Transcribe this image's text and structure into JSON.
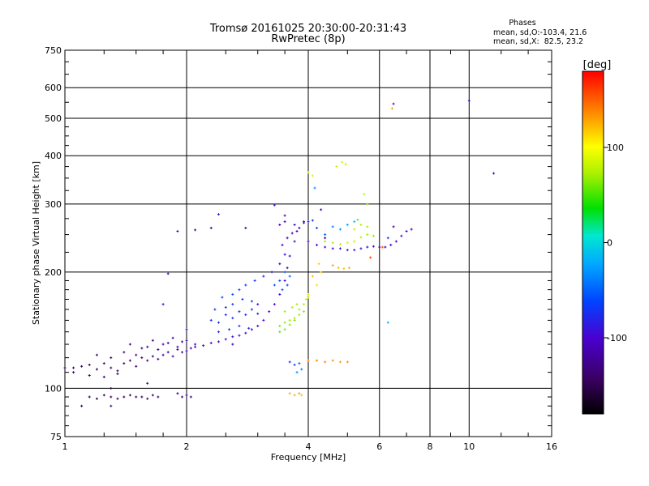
{
  "chart_data": {
    "type": "scatter",
    "title": "Tromsø 20161025 20:30:00-20:31:43",
    "subtitle": "RwPretec (8p)",
    "stats": {
      "heading": "Phases",
      "o_line": "mean, sd,O:-103.4, 21.6",
      "x_line": "mean, sd,X:  82.5, 23.2"
    },
    "xlabel": "Frequency [MHz]",
    "ylabel": "Stationary phase Virtual Height [km]",
    "x_scale": "log",
    "y_scale": "log",
    "xlim": [
      1,
      16
    ],
    "ylim": [
      75,
      750
    ],
    "x_ticks": [
      "1",
      "2",
      "4",
      "6",
      "8",
      "10",
      "16"
    ],
    "y_ticks": [
      "75",
      "100",
      "200",
      "300",
      "400",
      "500",
      "600",
      "750"
    ],
    "grid": true,
    "colorbar": {
      "label": "[deg]",
      "ticks": [
        "100",
        "0",
        "-100"
      ],
      "range": [
        -180,
        180
      ]
    },
    "series": [
      {
        "points": [
          [
            1.0,
            113,
            -150
          ],
          [
            1.05,
            113,
            -150
          ],
          [
            1.1,
            114,
            -150
          ],
          [
            1.15,
            115,
            -150
          ],
          [
            1.2,
            112,
            -150
          ],
          [
            1.25,
            116,
            -145
          ],
          [
            1.3,
            113,
            -145
          ],
          [
            1.35,
            111,
            -145
          ],
          [
            1.4,
            116,
            -140
          ],
          [
            1.45,
            118,
            -140
          ],
          [
            1.5,
            114,
            -140
          ],
          [
            1.55,
            120,
            -135
          ],
          [
            1.6,
            118,
            -130
          ],
          [
            1.65,
            121,
            -130
          ],
          [
            1.7,
            119,
            -125
          ],
          [
            1.75,
            122,
            -120
          ],
          [
            1.8,
            124,
            -120
          ],
          [
            1.85,
            121,
            -115
          ],
          [
            1.9,
            126,
            -115
          ],
          [
            1.95,
            124,
            -110
          ],
          [
            2.0,
            125,
            -110
          ],
          [
            2.05,
            127,
            -110
          ],
          [
            2.1,
            128,
            -105
          ],
          [
            2.2,
            129,
            -105
          ],
          [
            2.3,
            131,
            -100
          ],
          [
            2.4,
            132,
            -100
          ],
          [
            2.5,
            134,
            -95
          ],
          [
            2.6,
            136,
            -95
          ],
          [
            2.7,
            137,
            -95
          ],
          [
            2.8,
            139,
            -95
          ],
          [
            2.9,
            142,
            -95
          ],
          [
            3.0,
            145,
            -100
          ],
          [
            3.1,
            150,
            -100
          ],
          [
            3.2,
            158,
            -100
          ],
          [
            3.3,
            165,
            -100
          ],
          [
            3.4,
            175,
            -100
          ],
          [
            3.5,
            190,
            -100
          ],
          [
            3.55,
            205,
            -105
          ],
          [
            3.6,
            220,
            -105
          ],
          [
            3.7,
            240,
            -110
          ],
          [
            3.8,
            260,
            -110
          ],
          [
            3.9,
            270,
            -110
          ],
          [
            1.2,
            122,
            -140
          ],
          [
            1.3,
            120,
            -140
          ],
          [
            1.4,
            124,
            -135
          ],
          [
            1.5,
            122,
            -135
          ],
          [
            1.6,
            128,
            -130
          ],
          [
            1.7,
            126,
            -125
          ],
          [
            1.8,
            131,
            -120
          ],
          [
            1.9,
            128,
            -115
          ],
          [
            2.0,
            133,
            -110
          ],
          [
            2.1,
            130,
            -105
          ],
          [
            1.45,
            130,
            -135
          ],
          [
            1.55,
            127,
            -130
          ],
          [
            1.65,
            133,
            -125
          ],
          [
            1.75,
            130,
            -120
          ],
          [
            1.85,
            135,
            -115
          ],
          [
            1.95,
            132,
            -110
          ],
          [
            1.05,
            110,
            -155
          ],
          [
            1.15,
            108,
            -150
          ],
          [
            1.25,
            107,
            -150
          ],
          [
            1.35,
            109,
            -145
          ],
          [
            1.15,
            95,
            -150
          ],
          [
            1.2,
            94,
            -150
          ],
          [
            1.25,
            96,
            -150
          ],
          [
            1.3,
            95,
            -150
          ],
          [
            1.35,
            94,
            -145
          ],
          [
            1.4,
            95,
            -145
          ],
          [
            1.45,
            96,
            -145
          ],
          [
            1.5,
            95,
            -140
          ],
          [
            1.55,
            95,
            -140
          ],
          [
            1.6,
            94,
            -140
          ],
          [
            1.65,
            96,
            -140
          ],
          [
            1.7,
            95,
            -140
          ],
          [
            1.9,
            97,
            -130
          ],
          [
            1.95,
            95,
            -130
          ],
          [
            2.0,
            96,
            -130
          ],
          [
            2.05,
            95,
            -125
          ],
          [
            2.3,
            150,
            -80
          ],
          [
            2.4,
            148,
            -75
          ],
          [
            2.5,
            155,
            -75
          ],
          [
            2.6,
            152,
            -70
          ],
          [
            2.7,
            158,
            -70
          ],
          [
            2.8,
            155,
            -75
          ],
          [
            2.9,
            160,
            -75
          ],
          [
            3.0,
            156,
            -80
          ],
          [
            2.4,
            140,
            -80
          ],
          [
            2.55,
            142,
            -75
          ],
          [
            2.7,
            145,
            -70
          ],
          [
            2.85,
            143,
            -75
          ],
          [
            2.6,
            165,
            -70
          ],
          [
            2.75,
            170,
            -65
          ],
          [
            2.9,
            168,
            -70
          ],
          [
            2.5,
            162,
            -65
          ],
          [
            2.35,
            160,
            -70
          ],
          [
            2.45,
            172,
            -60
          ],
          [
            2.6,
            175,
            -55
          ],
          [
            2.7,
            180,
            -60
          ],
          [
            2.8,
            185,
            -65
          ],
          [
            2.95,
            190,
            -70
          ],
          [
            3.1,
            195,
            -80
          ],
          [
            3.25,
            200,
            -90
          ],
          [
            3.4,
            210,
            -100
          ],
          [
            3.5,
            222,
            -100
          ],
          [
            3.45,
            235,
            -105
          ],
          [
            3.55,
            245,
            -110
          ],
          [
            3.65,
            252,
            -110
          ],
          [
            3.75,
            255,
            -110
          ],
          [
            3.3,
            185,
            -55
          ],
          [
            3.4,
            190,
            -60
          ],
          [
            3.5,
            200,
            -55
          ],
          [
            3.6,
            195,
            -50
          ],
          [
            3.45,
            180,
            -55
          ],
          [
            3.55,
            185,
            -60
          ],
          [
            4.0,
            240,
            -100
          ],
          [
            4.2,
            235,
            -100
          ],
          [
            4.4,
            232,
            -95
          ],
          [
            4.6,
            230,
            -95
          ],
          [
            4.8,
            230,
            -90
          ],
          [
            5.0,
            228,
            -90
          ],
          [
            5.2,
            228,
            -90
          ],
          [
            5.4,
            230,
            -95
          ],
          [
            5.6,
            232,
            -100
          ],
          [
            5.8,
            233,
            -100
          ],
          [
            6.0,
            232,
            -105
          ],
          [
            6.2,
            232,
            -105
          ],
          [
            6.4,
            235,
            -105
          ],
          [
            6.6,
            240,
            -100
          ],
          [
            6.8,
            248,
            -100
          ],
          [
            7.0,
            255,
            -100
          ],
          [
            7.2,
            258,
            -100
          ],
          [
            3.5,
            270,
            -100
          ],
          [
            3.7,
            265,
            -95
          ],
          [
            3.9,
            268,
            -90
          ],
          [
            4.0,
            270,
            -80
          ],
          [
            4.1,
            272,
            -70
          ],
          [
            4.2,
            260,
            -60
          ],
          [
            4.4,
            250,
            -50
          ],
          [
            4.6,
            262,
            -40
          ],
          [
            4.8,
            258,
            -30
          ],
          [
            5.0,
            265,
            -20
          ],
          [
            5.2,
            270,
            -10
          ],
          [
            4.4,
            240,
            70
          ],
          [
            4.6,
            238,
            75
          ],
          [
            4.8,
            236,
            80
          ],
          [
            5.0,
            238,
            85
          ],
          [
            5.2,
            240,
            80
          ],
          [
            5.4,
            246,
            75
          ],
          [
            5.6,
            250,
            70
          ],
          [
            5.8,
            248,
            65
          ],
          [
            5.6,
            262,
            70
          ],
          [
            5.4,
            265,
            75
          ],
          [
            5.2,
            258,
            80
          ],
          [
            5.3,
            273,
            60
          ],
          [
            3.4,
            145,
            60
          ],
          [
            3.5,
            148,
            65
          ],
          [
            3.6,
            150,
            70
          ],
          [
            3.7,
            152,
            75
          ],
          [
            3.8,
            155,
            70
          ],
          [
            3.9,
            158,
            65
          ],
          [
            3.4,
            140,
            55
          ],
          [
            3.5,
            142,
            60
          ],
          [
            3.6,
            146,
            65
          ],
          [
            3.7,
            150,
            60
          ],
          [
            3.8,
            160,
            70
          ],
          [
            3.9,
            165,
            75
          ],
          [
            3.95,
            170,
            80
          ],
          [
            4.0,
            175,
            85
          ],
          [
            3.5,
            158,
            70
          ],
          [
            3.65,
            162,
            75
          ],
          [
            3.75,
            165,
            70
          ],
          [
            4.2,
            185,
            110
          ],
          [
            4.3,
            200,
            115
          ],
          [
            4.25,
            210,
            115
          ],
          [
            4.1,
            195,
            120
          ],
          [
            4.0,
            172,
            115
          ],
          [
            4.6,
            208,
            130
          ],
          [
            4.75,
            205,
            125
          ],
          [
            4.9,
            204,
            120
          ],
          [
            5.05,
            205,
            125
          ],
          [
            3.6,
            117,
            -70
          ],
          [
            3.7,
            115,
            -60
          ],
          [
            3.8,
            116,
            -50
          ],
          [
            3.85,
            112,
            -40
          ],
          [
            3.75,
            110,
            -30
          ],
          [
            4.0,
            118,
            140
          ],
          [
            4.2,
            118,
            140
          ],
          [
            4.4,
            117,
            140
          ],
          [
            4.6,
            118,
            135
          ],
          [
            4.8,
            117,
            130
          ],
          [
            5.0,
            117,
            135
          ],
          [
            3.6,
            97,
            125
          ],
          [
            3.7,
            96,
            125
          ],
          [
            3.8,
            97,
            130
          ],
          [
            3.85,
            96,
            120
          ],
          [
            4.0,
            362,
            75
          ],
          [
            4.1,
            355,
            85
          ],
          [
            4.15,
            330,
            -30
          ],
          [
            4.7,
            375,
            80
          ],
          [
            4.85,
            385,
            85
          ],
          [
            4.95,
            380,
            80
          ],
          [
            5.5,
            318,
            80
          ],
          [
            5.6,
            300,
            60
          ],
          [
            6.5,
            545,
            -100
          ],
          [
            6.45,
            530,
            130
          ],
          [
            10.0,
            555,
            -100
          ],
          [
            11.5,
            360,
            -100
          ],
          [
            3.4,
            265,
            -110
          ],
          [
            3.5,
            280,
            -100
          ],
          [
            3.3,
            298,
            -95
          ],
          [
            4.4,
            245,
            -120
          ],
          [
            6.3,
            245,
            -70
          ],
          [
            6.5,
            262,
            -120
          ],
          [
            1.75,
            165,
            -90
          ],
          [
            1.9,
            255,
            -110
          ],
          [
            2.1,
            257,
            -120
          ],
          [
            2.3,
            260,
            -130
          ],
          [
            2.8,
            260,
            -130
          ],
          [
            2.4,
            282,
            -100
          ],
          [
            1.8,
            198,
            -110
          ],
          [
            2.0,
            142,
            -90
          ],
          [
            2.6,
            130,
            -110
          ],
          [
            3.0,
            165,
            -95
          ],
          [
            1.6,
            103,
            -130
          ],
          [
            1.3,
            90,
            -120
          ],
          [
            4.3,
            290,
            -120
          ],
          [
            6.3,
            148,
            -20
          ],
          [
            5.7,
            218,
            160
          ],
          [
            6.1,
            232,
            150
          ],
          [
            1.3,
            100,
            -150
          ],
          [
            1.1,
            90,
            -150
          ]
        ]
      }
    ]
  }
}
